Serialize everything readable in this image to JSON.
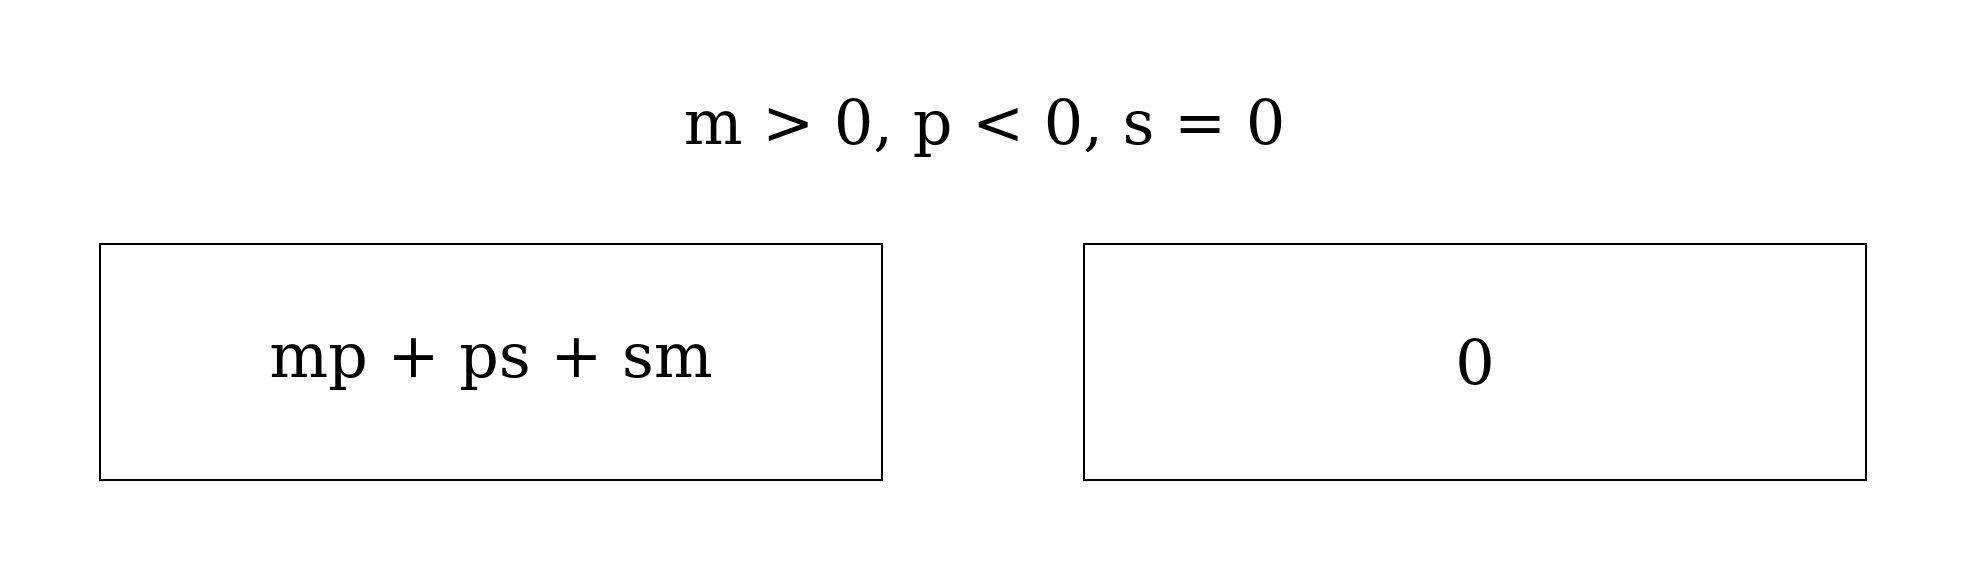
{
  "condition": "m > 0, p < 0, s = 0",
  "boxes": {
    "left": "mp + ps + sm",
    "right": "0"
  }
}
